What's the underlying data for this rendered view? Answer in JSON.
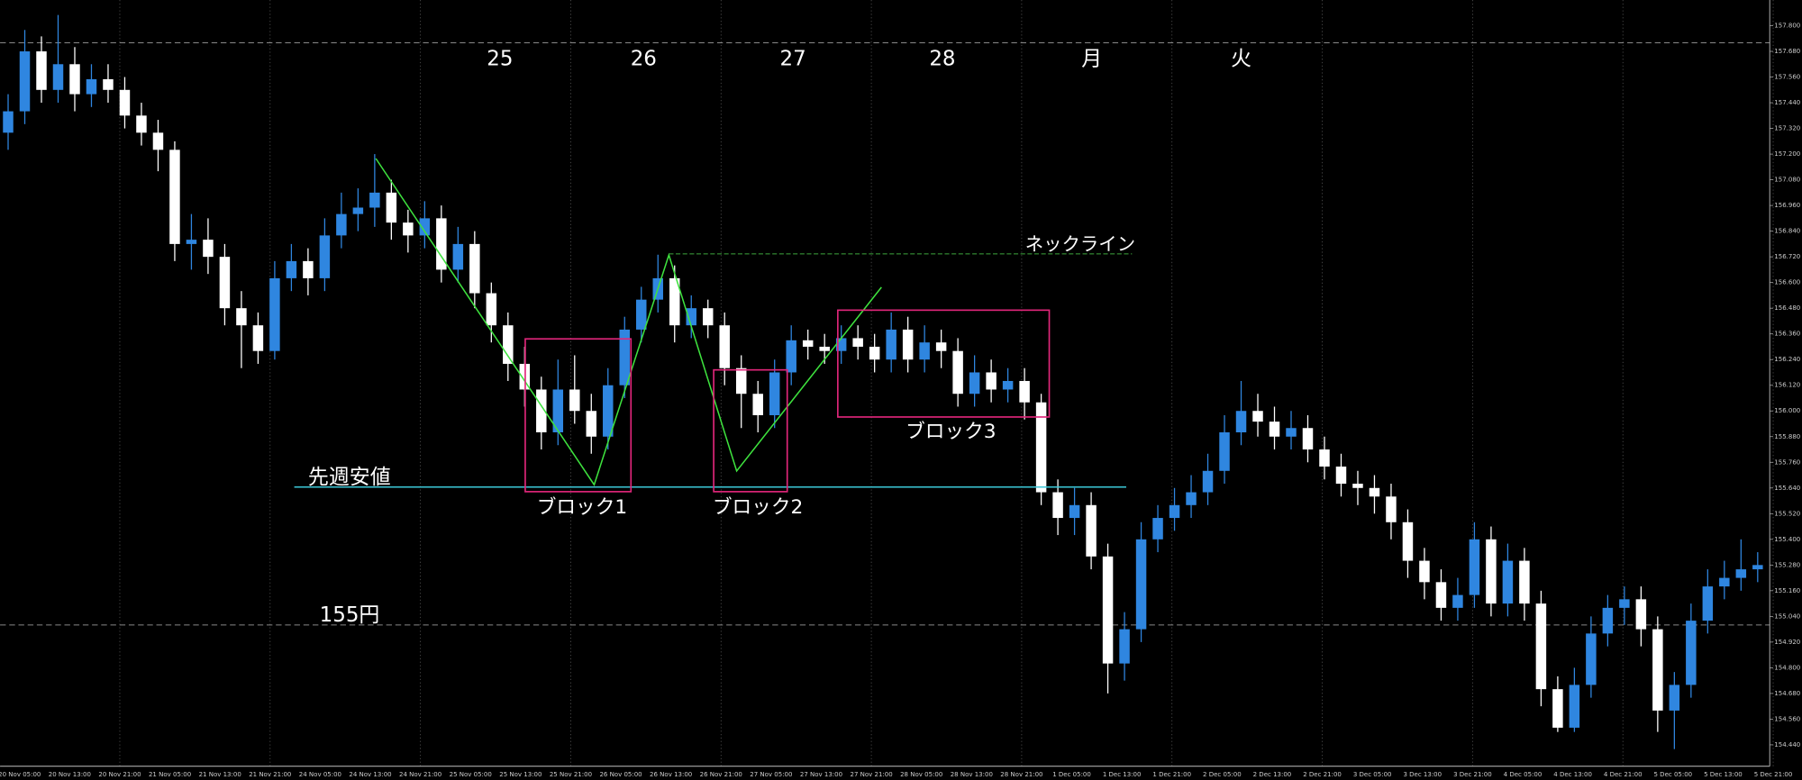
{
  "chart_data": {
    "type": "candlestick",
    "ylim": [
      154.34,
      157.92
    ],
    "yticks": [
      {
        "value": 154.44,
        "label": "154.440"
      },
      {
        "value": 154.56,
        "label": "154.560"
      },
      {
        "value": 154.68,
        "label": "154.680"
      },
      {
        "value": 154.8,
        "label": "154.800"
      },
      {
        "value": 154.92,
        "label": "154.920"
      },
      {
        "value": 155.04,
        "label": "155.040"
      },
      {
        "value": 155.16,
        "label": "155.160"
      },
      {
        "value": 155.28,
        "label": "155.280"
      },
      {
        "value": 155.4,
        "label": "155.400"
      },
      {
        "value": 155.52,
        "label": "155.520"
      },
      {
        "value": 155.64,
        "label": "155.640"
      },
      {
        "value": 155.76,
        "label": "155.760"
      },
      {
        "value": 155.88,
        "label": "155.880"
      },
      {
        "value": 156,
        "label": "156.000"
      },
      {
        "value": 156.12,
        "label": "156.120"
      },
      {
        "value": 156.24,
        "label": "156.240"
      },
      {
        "value": 156.36,
        "label": "156.360"
      },
      {
        "value": 156.48,
        "label": "156.480"
      },
      {
        "value": 156.6,
        "label": "156.600"
      },
      {
        "value": 156.72,
        "label": "156.720"
      },
      {
        "value": 156.84,
        "label": "156.840"
      },
      {
        "value": 156.96,
        "label": "156.960"
      },
      {
        "value": 157.08,
        "label": "157.080"
      },
      {
        "value": 157.2,
        "label": "157.200"
      },
      {
        "value": 157.32,
        "label": "157.320"
      },
      {
        "value": 157.44,
        "label": "157.440"
      },
      {
        "value": 157.56,
        "label": "157.560"
      },
      {
        "value": 157.68,
        "label": "157.680"
      },
      {
        "value": 157.8,
        "label": "157.800"
      }
    ],
    "xtick_labels": [
      "20 Nov 05:00",
      "20 Nov 13:00",
      "20 Nov 21:00",
      "21 Nov 05:00",
      "21 Nov 13:00",
      "21 Nov 21:00",
      "24 Nov 05:00",
      "24 Nov 13:00",
      "24 Nov 21:00",
      "25 Nov 05:00",
      "25 Nov 13:00",
      "25 Nov 21:00",
      "26 Nov 05:00",
      "26 Nov 13:00",
      "26 Nov 21:00",
      "27 Nov 05:00",
      "27 Nov 13:00",
      "27 Nov 21:00",
      "28 Nov 05:00",
      "28 Nov 13:00",
      "28 Nov 21:00",
      "1 Dec 05:00",
      "1 Dec 13:00",
      "1 Dec 21:00",
      "2 Dec 05:00",
      "2 Dec 13:00",
      "2 Dec 21:00",
      "3 Dec 05:00",
      "3 Dec 13:00",
      "3 Dec 21:00",
      "4 Dec 05:00",
      "4 Dec 13:00",
      "4 Dec 21:00",
      "5 Dec 05:00",
      "5 Dec 13:00",
      "5 Dec 21:00"
    ],
    "hlines": [
      157.72,
      155.0
    ],
    "up_color": "#2f86e0",
    "down_color": "#ffffff",
    "open": [
      157.3,
      157.4,
      157.68,
      157.5,
      157.62,
      157.48,
      157.55,
      157.5,
      157.38,
      157.3,
      157.22,
      156.78,
      156.8,
      156.72,
      156.48,
      156.4,
      156.28,
      156.62,
      156.7,
      156.62,
      156.82,
      156.92,
      156.95,
      157.02,
      156.88,
      156.82,
      156.9,
      156.66,
      156.78,
      156.55,
      156.4,
      156.22,
      156.1,
      155.9,
      156.1,
      156.0,
      155.88,
      156.12,
      156.38,
      156.52,
      156.62,
      156.4,
      156.48,
      156.4,
      156.2,
      156.08,
      155.98,
      156.18,
      156.33,
      156.3,
      156.28,
      156.34,
      156.3,
      156.24,
      156.38,
      156.24,
      156.32,
      156.28,
      156.08,
      156.18,
      156.1,
      156.14,
      156.04,
      155.62,
      155.5,
      155.56,
      155.32,
      154.82,
      154.98,
      155.4,
      155.5,
      155.56,
      155.62,
      155.72,
      155.9,
      156.0,
      155.95,
      155.88,
      155.92,
      155.82,
      155.74,
      155.66,
      155.64,
      155.6,
      155.48,
      155.3,
      155.2,
      155.08,
      155.14,
      155.4,
      155.1,
      155.3,
      155.1,
      154.7,
      154.52,
      154.72,
      154.96,
      155.08,
      155.12,
      154.98,
      154.6,
      154.72,
      155.02,
      155.18,
      155.22,
      155.26
    ],
    "high": [
      157.48,
      157.78,
      157.75,
      157.85,
      157.7,
      157.62,
      157.62,
      157.56,
      157.44,
      157.36,
      157.26,
      156.92,
      156.9,
      156.78,
      156.56,
      156.46,
      156.7,
      156.78,
      156.76,
      156.9,
      157.02,
      157.04,
      157.2,
      157.08,
      156.94,
      156.98,
      156.96,
      156.86,
      156.84,
      156.6,
      156.46,
      156.3,
      156.16,
      156.24,
      156.26,
      156.08,
      156.2,
      156.44,
      156.58,
      156.73,
      156.68,
      156.54,
      156.52,
      156.46,
      156.26,
      156.14,
      156.24,
      156.4,
      156.38,
      156.36,
      156.4,
      156.4,
      156.36,
      156.46,
      156.44,
      156.4,
      156.38,
      156.34,
      156.26,
      156.24,
      156.2,
      156.2,
      156.08,
      155.68,
      155.64,
      155.62,
      155.38,
      155.06,
      155.48,
      155.56,
      155.64,
      155.7,
      155.8,
      155.98,
      156.14,
      156.08,
      156.02,
      156.0,
      155.98,
      155.88,
      155.8,
      155.72,
      155.7,
      155.66,
      155.54,
      155.36,
      155.26,
      155.22,
      155.48,
      155.46,
      155.38,
      155.36,
      155.16,
      154.76,
      154.8,
      155.04,
      155.14,
      155.18,
      155.18,
      155.04,
      154.78,
      155.1,
      155.26,
      155.3,
      155.4,
      155.34
    ],
    "low": [
      157.22,
      157.34,
      157.44,
      157.44,
      157.4,
      157.42,
      157.44,
      157.32,
      157.24,
      157.12,
      156.7,
      156.66,
      156.64,
      156.4,
      156.2,
      156.22,
      156.24,
      156.56,
      156.54,
      156.56,
      156.76,
      156.84,
      156.86,
      156.8,
      156.74,
      156.76,
      156.6,
      156.6,
      156.48,
      156.32,
      156.14,
      156.02,
      155.82,
      155.84,
      155.94,
      155.8,
      155.82,
      156.06,
      156.32,
      156.46,
      156.32,
      156.34,
      156.34,
      156.12,
      155.92,
      155.9,
      155.92,
      156.12,
      156.24,
      156.22,
      156.22,
      156.24,
      156.18,
      156.18,
      156.18,
      156.18,
      156.2,
      156.02,
      156.02,
      156.04,
      156.04,
      155.96,
      155.56,
      155.42,
      155.42,
      155.26,
      154.68,
      154.74,
      154.92,
      155.34,
      155.44,
      155.5,
      155.56,
      155.66,
      155.84,
      155.88,
      155.82,
      155.82,
      155.76,
      155.68,
      155.6,
      155.56,
      155.52,
      155.4,
      155.22,
      155.12,
      155.02,
      155.02,
      155.08,
      155.04,
      155.04,
      155.02,
      154.62,
      154.5,
      154.5,
      154.66,
      154.9,
      155.0,
      154.9,
      154.5,
      154.42,
      154.66,
      154.96,
      155.12,
      155.16,
      155.2
    ],
    "close": [
      157.4,
      157.68,
      157.5,
      157.62,
      157.48,
      157.55,
      157.5,
      157.38,
      157.3,
      157.22,
      156.78,
      156.8,
      156.72,
      156.48,
      156.4,
      156.28,
      156.62,
      156.7,
      156.62,
      156.82,
      156.92,
      156.95,
      157.02,
      156.88,
      156.82,
      156.9,
      156.66,
      156.78,
      156.55,
      156.4,
      156.22,
      156.1,
      155.9,
      156.1,
      156.0,
      155.88,
      156.12,
      156.38,
      156.52,
      156.62,
      156.4,
      156.48,
      156.4,
      156.2,
      156.08,
      155.98,
      156.18,
      156.33,
      156.3,
      156.28,
      156.34,
      156.3,
      156.24,
      156.38,
      156.24,
      156.32,
      156.28,
      156.08,
      156.18,
      156.1,
      156.14,
      156.04,
      155.62,
      155.5,
      155.56,
      155.32,
      154.82,
      154.98,
      155.4,
      155.5,
      155.56,
      155.62,
      155.72,
      155.9,
      156.0,
      155.95,
      155.88,
      155.92,
      155.82,
      155.74,
      155.66,
      155.64,
      155.6,
      155.48,
      155.3,
      155.2,
      155.08,
      155.14,
      155.4,
      155.1,
      155.3,
      155.1,
      154.7,
      154.52,
      154.72,
      154.96,
      155.08,
      155.12,
      154.98,
      154.6,
      154.72,
      155.02,
      155.18,
      155.22,
      155.26,
      155.28
    ],
    "annotations": {
      "days": [
        "25",
        "26",
        "27",
        "28",
        "月",
        "火"
      ],
      "neckline": "ネックライン",
      "last_week_low": "先週安値",
      "level_155": "155円",
      "blocks": [
        "ブロック1",
        "ブロック2",
        "ブロック3"
      ]
    }
  }
}
